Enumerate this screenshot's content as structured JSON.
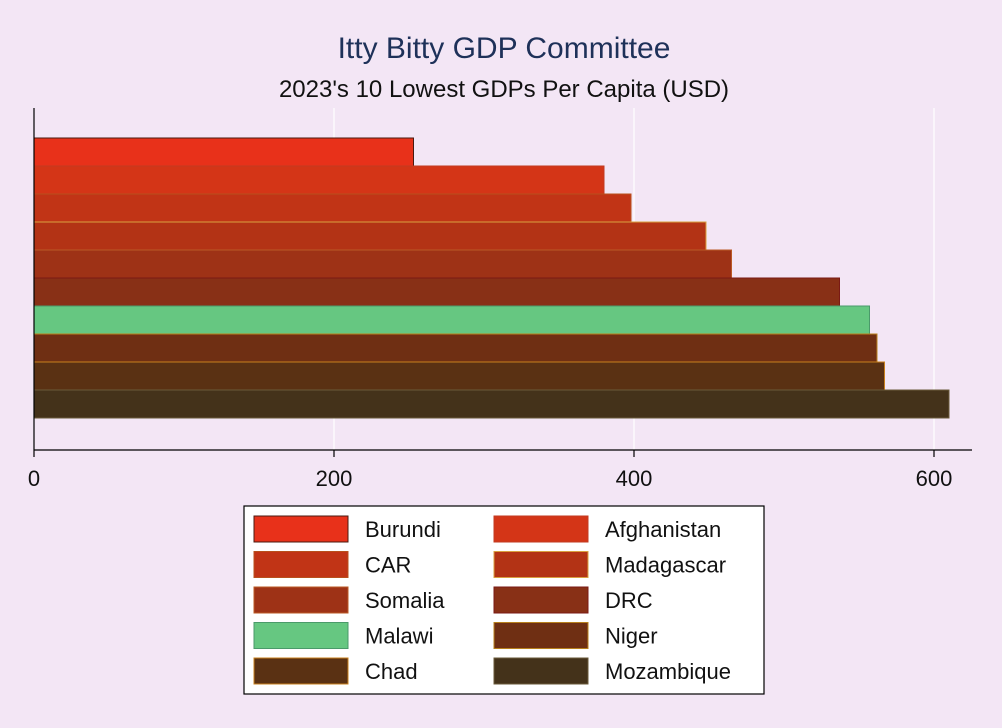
{
  "chart_data": {
    "type": "bar",
    "orientation": "horizontal",
    "title": "Itty Bitty GDP Committee",
    "subtitle": "2023's 10 Lowest GDPs Per Capita (USD)",
    "xlabel": "",
    "ylabel": "",
    "xlim": [
      0,
      625
    ],
    "xticks": [
      0,
      200,
      400,
      600
    ],
    "grid": true,
    "legend_position": "bottom",
    "categories": [
      "Burundi",
      "Afghanistan",
      "CAR",
      "Madagascar",
      "Somalia",
      "DRC",
      "Malawi",
      "Niger",
      "Chad",
      "Mozambique"
    ],
    "values": [
      253,
      380,
      398,
      448,
      465,
      537,
      557,
      562,
      567,
      610
    ],
    "colors": [
      "#e8311a",
      "#d43517",
      "#c13416",
      "#b33315",
      "#9e3216",
      "#883016",
      "#66c781",
      "#6f2f13",
      "#5a3113",
      "#44321a"
    ],
    "border_colors": [
      "#4a1a10",
      "#c23a20",
      "#b8501c",
      "#d9a040",
      "#bb5a25",
      "#7a1a14",
      "#4a9a6a",
      "#b8801c",
      "#c8801c",
      "#6a5a3a"
    ]
  }
}
